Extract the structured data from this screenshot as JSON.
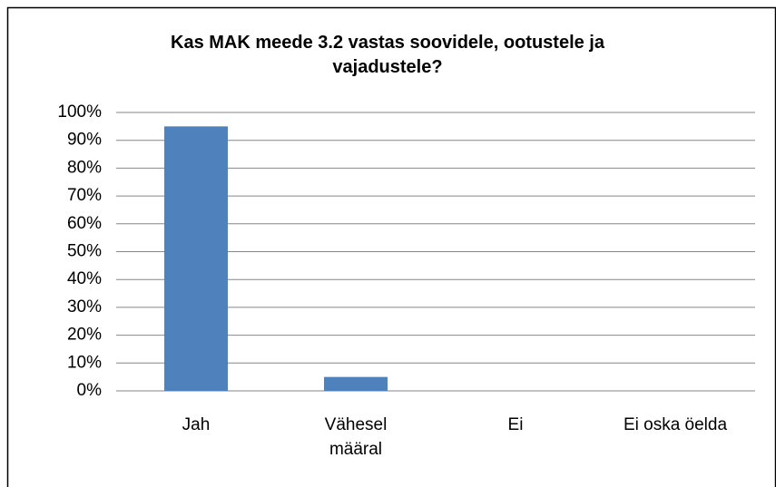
{
  "chart_data": {
    "type": "bar",
    "title": "Kas MAK meede 3.2 vastas soovidele, ootustele ja vajadustele?",
    "categories": [
      "Jah",
      "Vähesel määral",
      "Ei",
      "Ei oska öelda"
    ],
    "values": [
      95,
      5,
      0,
      0
    ],
    "color": "#4f81bd",
    "ylim": [
      0,
      100
    ],
    "yticks": [
      {
        "value": 0,
        "label": "0%"
      },
      {
        "value": 10,
        "label": "10%"
      },
      {
        "value": 20,
        "label": "20%"
      },
      {
        "value": 30,
        "label": "30%"
      },
      {
        "value": 40,
        "label": "40%"
      },
      {
        "value": 50,
        "label": "50%"
      },
      {
        "value": 60,
        "label": "60%"
      },
      {
        "value": 70,
        "label": "70%"
      },
      {
        "value": 80,
        "label": "80%"
      },
      {
        "value": 90,
        "label": "90%"
      },
      {
        "value": 100,
        "label": "100%"
      }
    ],
    "grid": true
  }
}
